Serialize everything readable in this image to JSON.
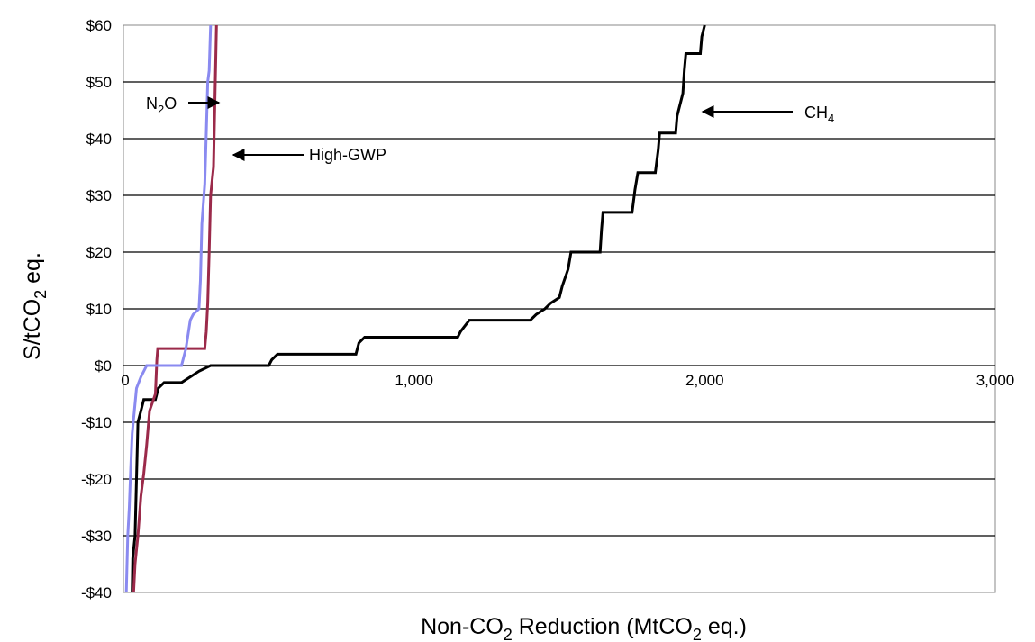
{
  "chart_data": {
    "type": "line",
    "title": "",
    "xlabel": {
      "prefix": "Non-CO",
      "sub": "2",
      "suffix": " Reduction (MtCO",
      "sub2": "2",
      "end": " eq.)"
    },
    "ylabel": {
      "prefix": "S/tCO",
      "sub": "2",
      "suffix": " eq."
    },
    "xlim": [
      0,
      3000
    ],
    "ylim": [
      -40,
      60
    ],
    "x_ticks": [
      {
        "value": 0,
        "label": "0"
      },
      {
        "value": 1000,
        "label": "1,000"
      },
      {
        "value": 2000,
        "label": "2,000"
      },
      {
        "value": 3000,
        "label": "3,000"
      }
    ],
    "y_ticks": [
      {
        "value": 60,
        "label": "$60"
      },
      {
        "value": 50,
        "label": "$50"
      },
      {
        "value": 40,
        "label": "$40"
      },
      {
        "value": 30,
        "label": "$30"
      },
      {
        "value": 20,
        "label": "$20"
      },
      {
        "value": 10,
        "label": "$10"
      },
      {
        "value": 0,
        "label": "$0"
      },
      {
        "value": -10,
        "label": "-$10"
      },
      {
        "value": -20,
        "label": "-$20"
      },
      {
        "value": -30,
        "label": "-$30"
      },
      {
        "value": -40,
        "label": "-$40"
      }
    ],
    "grid": "horizontal",
    "series": [
      {
        "name": "CH4",
        "color": "#000000",
        "points": [
          [
            30,
            -40
          ],
          [
            32,
            -34
          ],
          [
            40,
            -30
          ],
          [
            45,
            -20
          ],
          [
            50,
            -10
          ],
          [
            60,
            -8
          ],
          [
            70,
            -6
          ],
          [
            110,
            -6
          ],
          [
            120,
            -4
          ],
          [
            140,
            -3
          ],
          [
            200,
            -3
          ],
          [
            230,
            -2
          ],
          [
            260,
            -1
          ],
          [
            300,
            0
          ],
          [
            500,
            0
          ],
          [
            510,
            1
          ],
          [
            530,
            2
          ],
          [
            800,
            2
          ],
          [
            810,
            4
          ],
          [
            830,
            5
          ],
          [
            1150,
            5
          ],
          [
            1160,
            6
          ],
          [
            1190,
            8
          ],
          [
            1400,
            8
          ],
          [
            1420,
            9
          ],
          [
            1450,
            10
          ],
          [
            1470,
            11
          ],
          [
            1500,
            12
          ],
          [
            1510,
            14
          ],
          [
            1530,
            17
          ],
          [
            1540,
            20
          ],
          [
            1640,
            20
          ],
          [
            1645,
            24
          ],
          [
            1650,
            27
          ],
          [
            1750,
            27
          ],
          [
            1760,
            31
          ],
          [
            1770,
            34
          ],
          [
            1830,
            34
          ],
          [
            1840,
            38
          ],
          [
            1845,
            41
          ],
          [
            1900,
            41
          ],
          [
            1905,
            44
          ],
          [
            1925,
            48
          ],
          [
            1930,
            52
          ],
          [
            1935,
            55
          ],
          [
            1985,
            55
          ],
          [
            1990,
            58
          ],
          [
            2000,
            60
          ]
        ]
      },
      {
        "name": "High-GWP",
        "color": "#9b2a4a",
        "points": [
          [
            35,
            -40
          ],
          [
            40,
            -35
          ],
          [
            50,
            -30
          ],
          [
            60,
            -23
          ],
          [
            70,
            -19
          ],
          [
            80,
            -14
          ],
          [
            90,
            -8
          ],
          [
            110,
            -5
          ],
          [
            115,
            1
          ],
          [
            118,
            3
          ],
          [
            280,
            3
          ],
          [
            285,
            6
          ],
          [
            290,
            11
          ],
          [
            295,
            20
          ],
          [
            300,
            30
          ],
          [
            310,
            35
          ],
          [
            320,
            60
          ]
        ]
      },
      {
        "name": "N2O",
        "color": "#8a8af0",
        "points": [
          [
            10,
            -40
          ],
          [
            15,
            -30
          ],
          [
            20,
            -25
          ],
          [
            25,
            -18
          ],
          [
            30,
            -12
          ],
          [
            45,
            -4
          ],
          [
            60,
            -2
          ],
          [
            80,
            0
          ],
          [
            200,
            0
          ],
          [
            215,
            3
          ],
          [
            230,
            8
          ],
          [
            240,
            9
          ],
          [
            260,
            10
          ],
          [
            265,
            15
          ],
          [
            270,
            25
          ],
          [
            280,
            32
          ],
          [
            285,
            41
          ],
          [
            290,
            50
          ],
          [
            295,
            52
          ],
          [
            300,
            60
          ]
        ]
      }
    ],
    "annotations": [
      {
        "series": "N2O",
        "text": "N",
        "sub": "2",
        "suffix": "O"
      },
      {
        "series": "High-GWP",
        "text": "High-GWP",
        "sub": "",
        "suffix": ""
      },
      {
        "series": "CH4",
        "text": "CH",
        "sub": "4",
        "suffix": ""
      }
    ]
  }
}
